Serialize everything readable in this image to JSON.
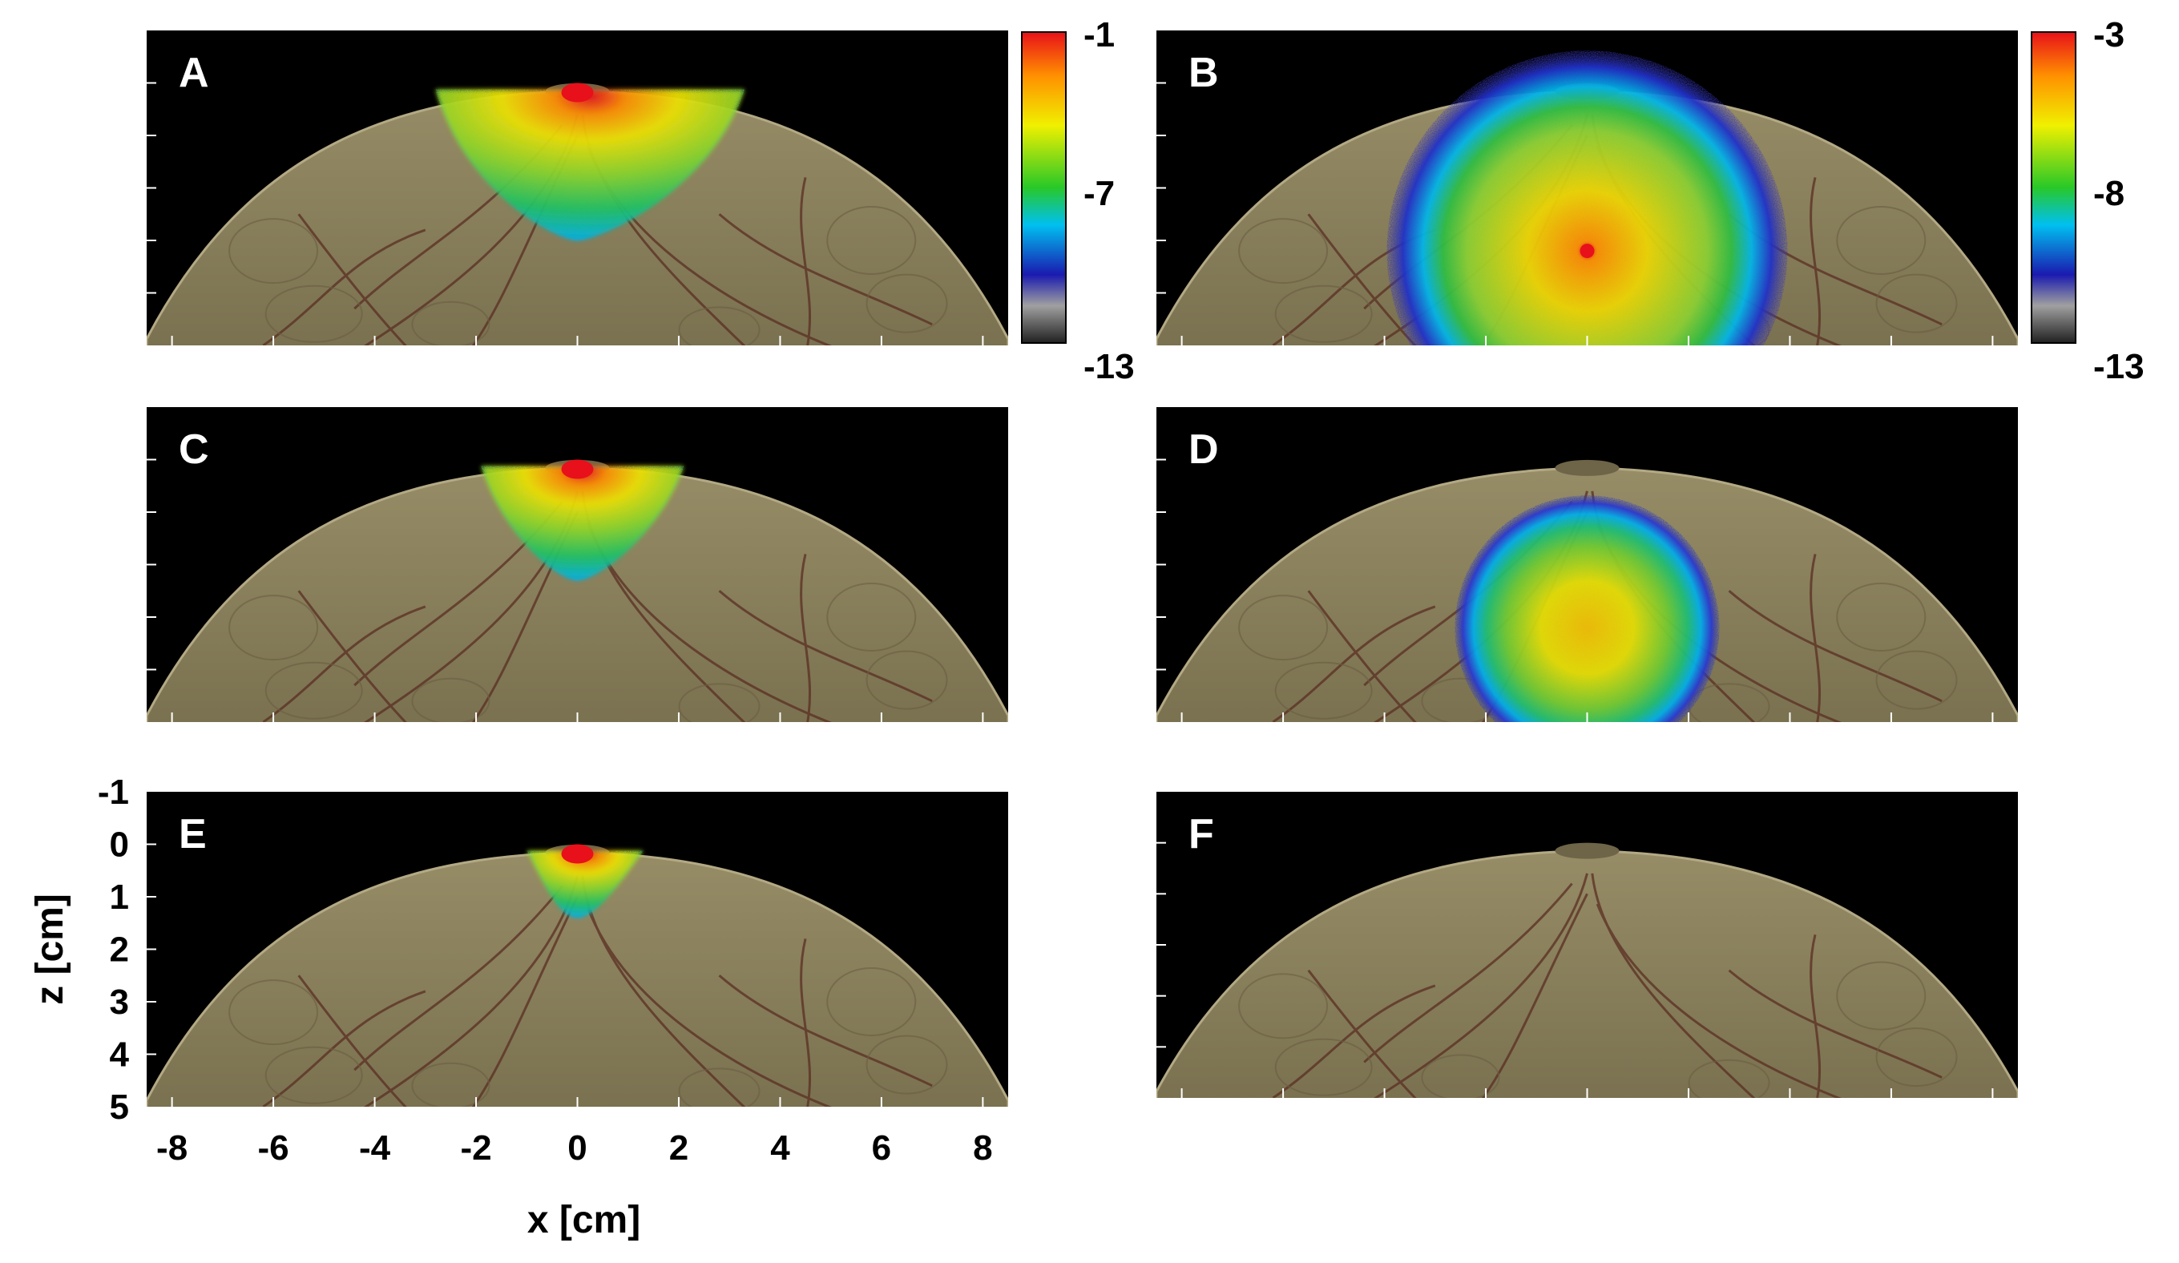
{
  "panels": [
    {
      "label": "A",
      "shape": "cone",
      "peak_depth_cm": 0.0
    },
    {
      "label": "B",
      "shape": "sphere",
      "peak_depth_cm": 3.2
    },
    {
      "label": "C",
      "shape": "cone",
      "peak_depth_cm": 0.0
    },
    {
      "label": "D",
      "shape": "sphere",
      "peak_depth_cm": 3.2
    },
    {
      "label": "E",
      "shape": "cone",
      "peak_depth_cm": 0.0
    },
    {
      "label": "F",
      "shape": "none",
      "peak_depth_cm": null
    }
  ],
  "colorbars": [
    {
      "panel": "A",
      "max_label": "-1",
      "mid_label": "-7",
      "min_label": "-13"
    },
    {
      "panel": "B",
      "max_label": "-3",
      "mid_label": "-8",
      "min_label": "-13"
    }
  ],
  "axes": {
    "x_label": "x [cm]",
    "z_label": "z [cm]",
    "x_ticks": [
      "-8",
      "-6",
      "-4",
      "-2",
      "0",
      "2",
      "4",
      "6",
      "8"
    ],
    "z_ticks": [
      "-1",
      "0",
      "1",
      "2",
      "3",
      "4",
      "5"
    ],
    "x_range": [
      -8.5,
      8.5
    ],
    "z_range": [
      -1,
      5
    ]
  },
  "colors": {
    "background": "#000000",
    "tissue": "#857b58",
    "vessels": "#5a2e22",
    "colormap": [
      "#2a2a2a",
      "#9a9a9a",
      "#1010c0",
      "#00b8f0",
      "#3ad01e",
      "#f0f000",
      "#ff9800",
      "#e8101a"
    ]
  }
}
